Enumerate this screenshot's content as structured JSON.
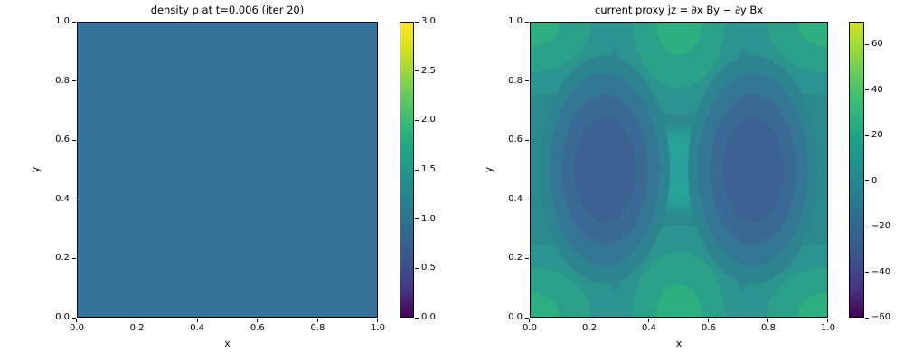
{
  "figure": {
    "background": "#ffffff",
    "kind": "matplotlib-style figure with two filled-contour subplots, each with a viridis colorbar"
  },
  "chart_data": [
    {
      "type": "heatmap",
      "title": "density ρ at t=0.006 (iter 20)",
      "xlabel": "x",
      "ylabel": "y",
      "xlim": [
        0.0,
        1.0
      ],
      "ylim": [
        0.0,
        1.0
      ],
      "x_ticks": [
        "0.0",
        "0.2",
        "0.4",
        "0.6",
        "0.8",
        "1.0"
      ],
      "y_ticks": [
        "0.0",
        "0.2",
        "0.4",
        "0.6",
        "0.8",
        "1.0"
      ],
      "grid": false,
      "field_description": "uniform constant field, density ≈ 1.0 everywhere (single solid color band)",
      "field_value": 1.0,
      "fill_color": "#36739a",
      "colorbar": {
        "colormap": "viridis",
        "vmin": 0.0,
        "vmax": 3.0,
        "ticks": [
          {
            "label": "3.0",
            "value": 3.0
          },
          {
            "label": "2.5",
            "value": 2.5
          },
          {
            "label": "2.0",
            "value": 2.0
          },
          {
            "label": "1.5",
            "value": 1.5
          },
          {
            "label": "1.0",
            "value": 1.0
          },
          {
            "label": "0.5",
            "value": 0.5
          },
          {
            "label": "0.0",
            "value": 0.0
          }
        ],
        "gradient_stops_bottom_to_top": [
          "#440154",
          "#46327e",
          "#3d4e8a",
          "#34618d",
          "#2b748e",
          "#24868e",
          "#1f988b",
          "#22a884",
          "#3abc76",
          "#62cb5f",
          "#9bd93c",
          "#d8e219",
          "#fde725"
        ]
      }
    },
    {
      "type": "heatmap",
      "title": "current proxy jz = ∂x By − ∂y Bx",
      "xlabel": "x",
      "ylabel": "y",
      "xlim": [
        0.0,
        1.0
      ],
      "ylim": [
        0.0,
        1.0
      ],
      "x_ticks": [
        "0.0",
        "0.2",
        "0.4",
        "0.6",
        "0.8",
        "1.0"
      ],
      "y_ticks": [
        "0.0",
        "0.2",
        "0.4",
        "0.6",
        "0.8",
        "1.0"
      ],
      "grid": false,
      "field_description": "banded filled contours: two dark vertically-elongated minima lobes at x≈0.25 and x≈0.75 (y≈0.5), green maxima at the four corners and at mid-top/mid-bottom (x≈0.5), teal background with a lighter waist at the center",
      "features": {
        "background_value_est": 0,
        "minima": [
          {
            "x": 0.25,
            "y": 0.5,
            "value_est": -20
          },
          {
            "x": 0.75,
            "y": 0.5,
            "value_est": -20
          }
        ],
        "maxima": [
          {
            "x": 0.0,
            "y": 0.0
          },
          {
            "x": 1.0,
            "y": 0.0
          },
          {
            "x": 0.0,
            "y": 1.0
          },
          {
            "x": 1.0,
            "y": 1.0
          },
          {
            "x": 0.5,
            "y": 0.0
          },
          {
            "x": 0.5,
            "y": 1.0
          }
        ],
        "maxima_value_est": 25
      },
      "colors": {
        "background": "#2b8a8e",
        "center_light": "#26a29a",
        "low_core": "#3c6192",
        "low_mid": "#3a6b95",
        "low_outer": "#347795",
        "low_edge": "#2e8390",
        "high_core": "#2db080",
        "high_mid": "#2ca189",
        "high_edge": "#2b948f"
      },
      "colorbar": {
        "colormap": "viridis",
        "vmin": -60,
        "vmax": 70,
        "ticks": [
          {
            "label": "60",
            "value": 60
          },
          {
            "label": "40",
            "value": 40
          },
          {
            "label": "20",
            "value": 20
          },
          {
            "label": "0",
            "value": 0
          },
          {
            "label": "−20",
            "value": -20
          },
          {
            "label": "−40",
            "value": -40
          },
          {
            "label": "−60",
            "value": -60
          }
        ],
        "gradient_stops_bottom_to_top": [
          "#440154",
          "#46327e",
          "#3d4e8a",
          "#34618d",
          "#2b748e",
          "#24868e",
          "#1f988b",
          "#22a884",
          "#3abc76",
          "#62cb5f",
          "#9bd93c",
          "#d0e120"
        ]
      }
    }
  ]
}
